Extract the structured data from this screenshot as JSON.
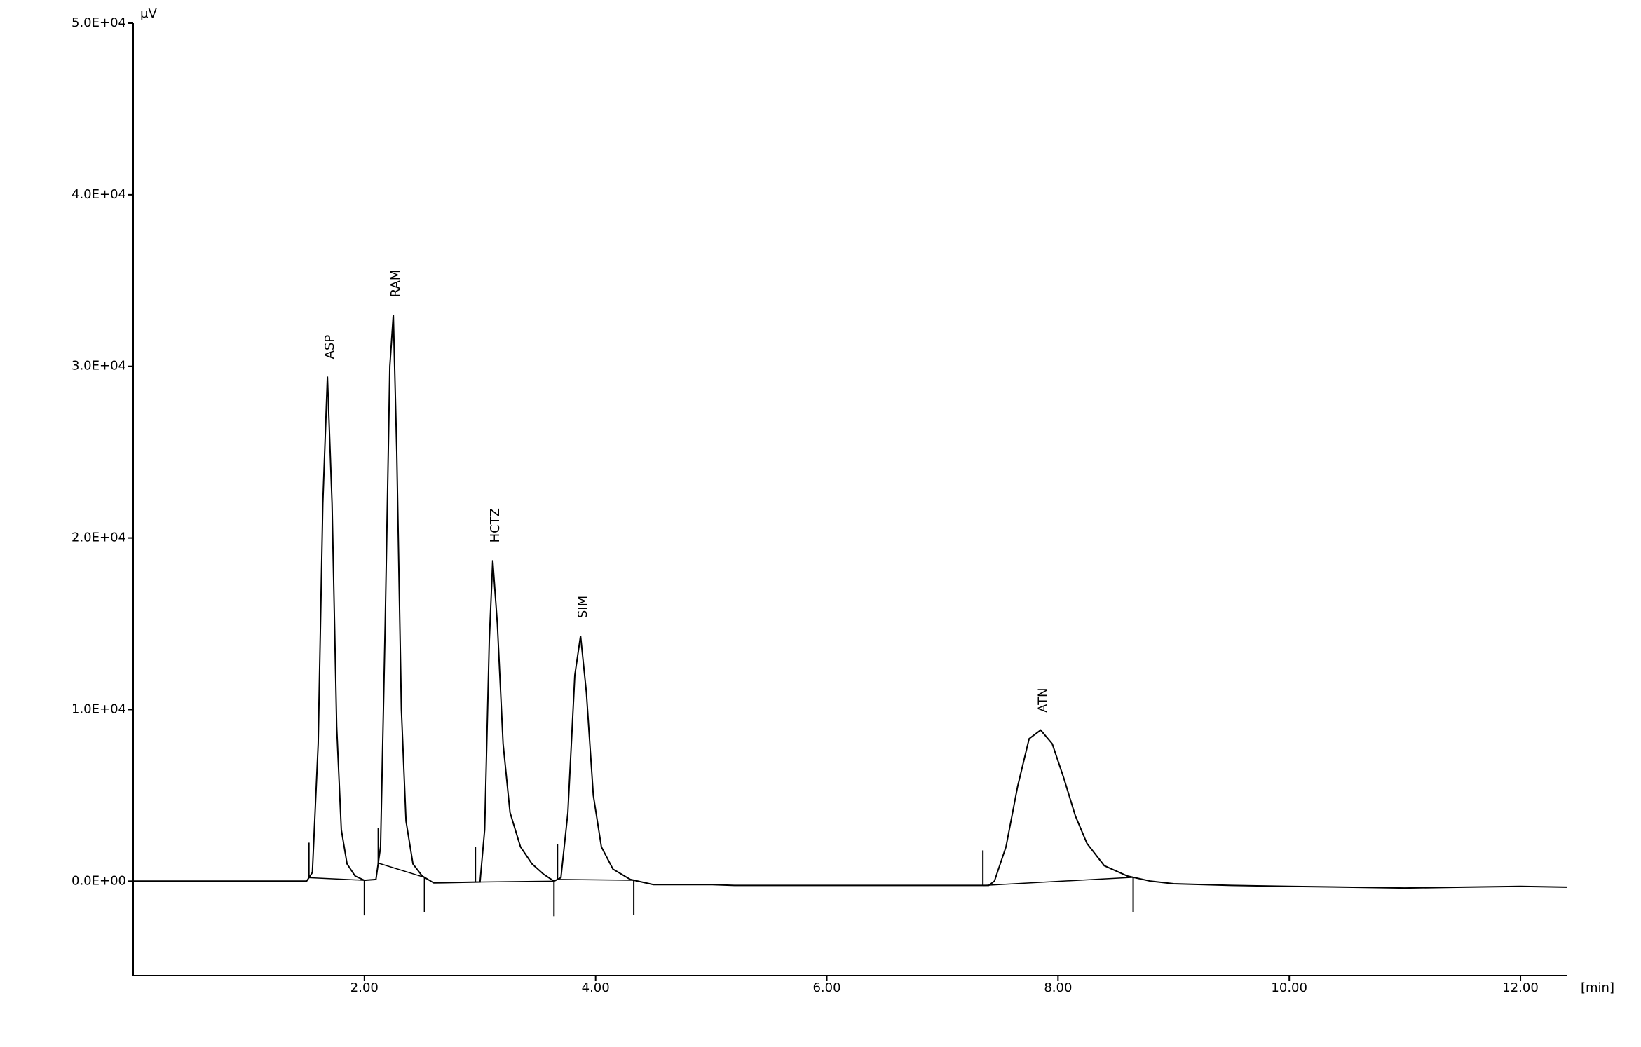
{
  "chart_data": {
    "type": "line",
    "y_unit": "µV",
    "x_unit": "[min]",
    "xlim": [
      0,
      12.4
    ],
    "ylim": [
      -5500,
      50000
    ],
    "xticks": [
      {
        "value": 2,
        "label": "2.00"
      },
      {
        "value": 4,
        "label": "4.00"
      },
      {
        "value": 6,
        "label": "6.00"
      },
      {
        "value": 8,
        "label": "8.00"
      },
      {
        "value": 10,
        "label": "10.00"
      },
      {
        "value": 12,
        "label": "12.00"
      }
    ],
    "yticks": [
      {
        "value": 0,
        "label": "0.0E+00"
      },
      {
        "value": 10000,
        "label": "1.0E+04"
      },
      {
        "value": 20000,
        "label": "2.0E+04"
      },
      {
        "value": 30000,
        "label": "3.0E+04"
      },
      {
        "value": 40000,
        "label": "4.0E+04"
      },
      {
        "value": 50000,
        "label": "5.0E+04"
      }
    ],
    "color": "#000000",
    "x": [
      0,
      1.0,
      1.5,
      1.55,
      1.6,
      1.64,
      1.68,
      1.72,
      1.76,
      1.8,
      1.85,
      1.92,
      2.0,
      2.1,
      2.14,
      2.18,
      2.22,
      2.25,
      2.28,
      2.32,
      2.36,
      2.42,
      2.5,
      2.6,
      3.0,
      3.04,
      3.08,
      3.11,
      3.15,
      3.2,
      3.26,
      3.35,
      3.45,
      3.55,
      3.64,
      3.7,
      3.76,
      3.82,
      3.87,
      3.92,
      3.98,
      4.05,
      4.15,
      4.3,
      4.5,
      5.0,
      5.2,
      6.0,
      7.0,
      7.4,
      7.45,
      7.55,
      7.65,
      7.75,
      7.85,
      7.95,
      8.05,
      8.15,
      8.25,
      8.4,
      8.6,
      8.8,
      9.0,
      9.5,
      10.0,
      11.0,
      11.5,
      12.0,
      12.4
    ],
    "values": [
      0,
      0,
      0,
      500,
      8000,
      22000,
      29400,
      22000,
      9000,
      3000,
      1000,
      300,
      50,
      100,
      2000,
      15000,
      30000,
      33000,
      25000,
      10000,
      3500,
      1000,
      300,
      -100,
      -50,
      3000,
      14000,
      18700,
      15000,
      8000,
      4000,
      2000,
      1000,
      400,
      0,
      200,
      4000,
      12000,
      14300,
      11000,
      5000,
      2000,
      700,
      100,
      -200,
      -200,
      -250,
      -250,
      -250,
      -250,
      0,
      2000,
      5500,
      8300,
      8800,
      8000,
      6000,
      3800,
      2200,
      900,
      300,
      0,
      -150,
      -250,
      -300,
      -400,
      -350,
      -300,
      -350
    ],
    "integration_starts": [
      1.52,
      2.12,
      2.96,
      3.67,
      7.35
    ],
    "integration_ends": [
      2.0,
      2.52,
      3.64,
      4.33,
      8.65
    ],
    "annotations": [
      {
        "text": "ASP",
        "x": 1.68,
        "y": 29400
      },
      {
        "text": "RAM",
        "x": 2.25,
        "y": 33000
      },
      {
        "text": "HCTZ",
        "x": 3.11,
        "y": 18700
      },
      {
        "text": "SIM",
        "x": 3.87,
        "y": 14300
      },
      {
        "text": "ATN",
        "x": 7.85,
        "y": 8800
      }
    ]
  }
}
